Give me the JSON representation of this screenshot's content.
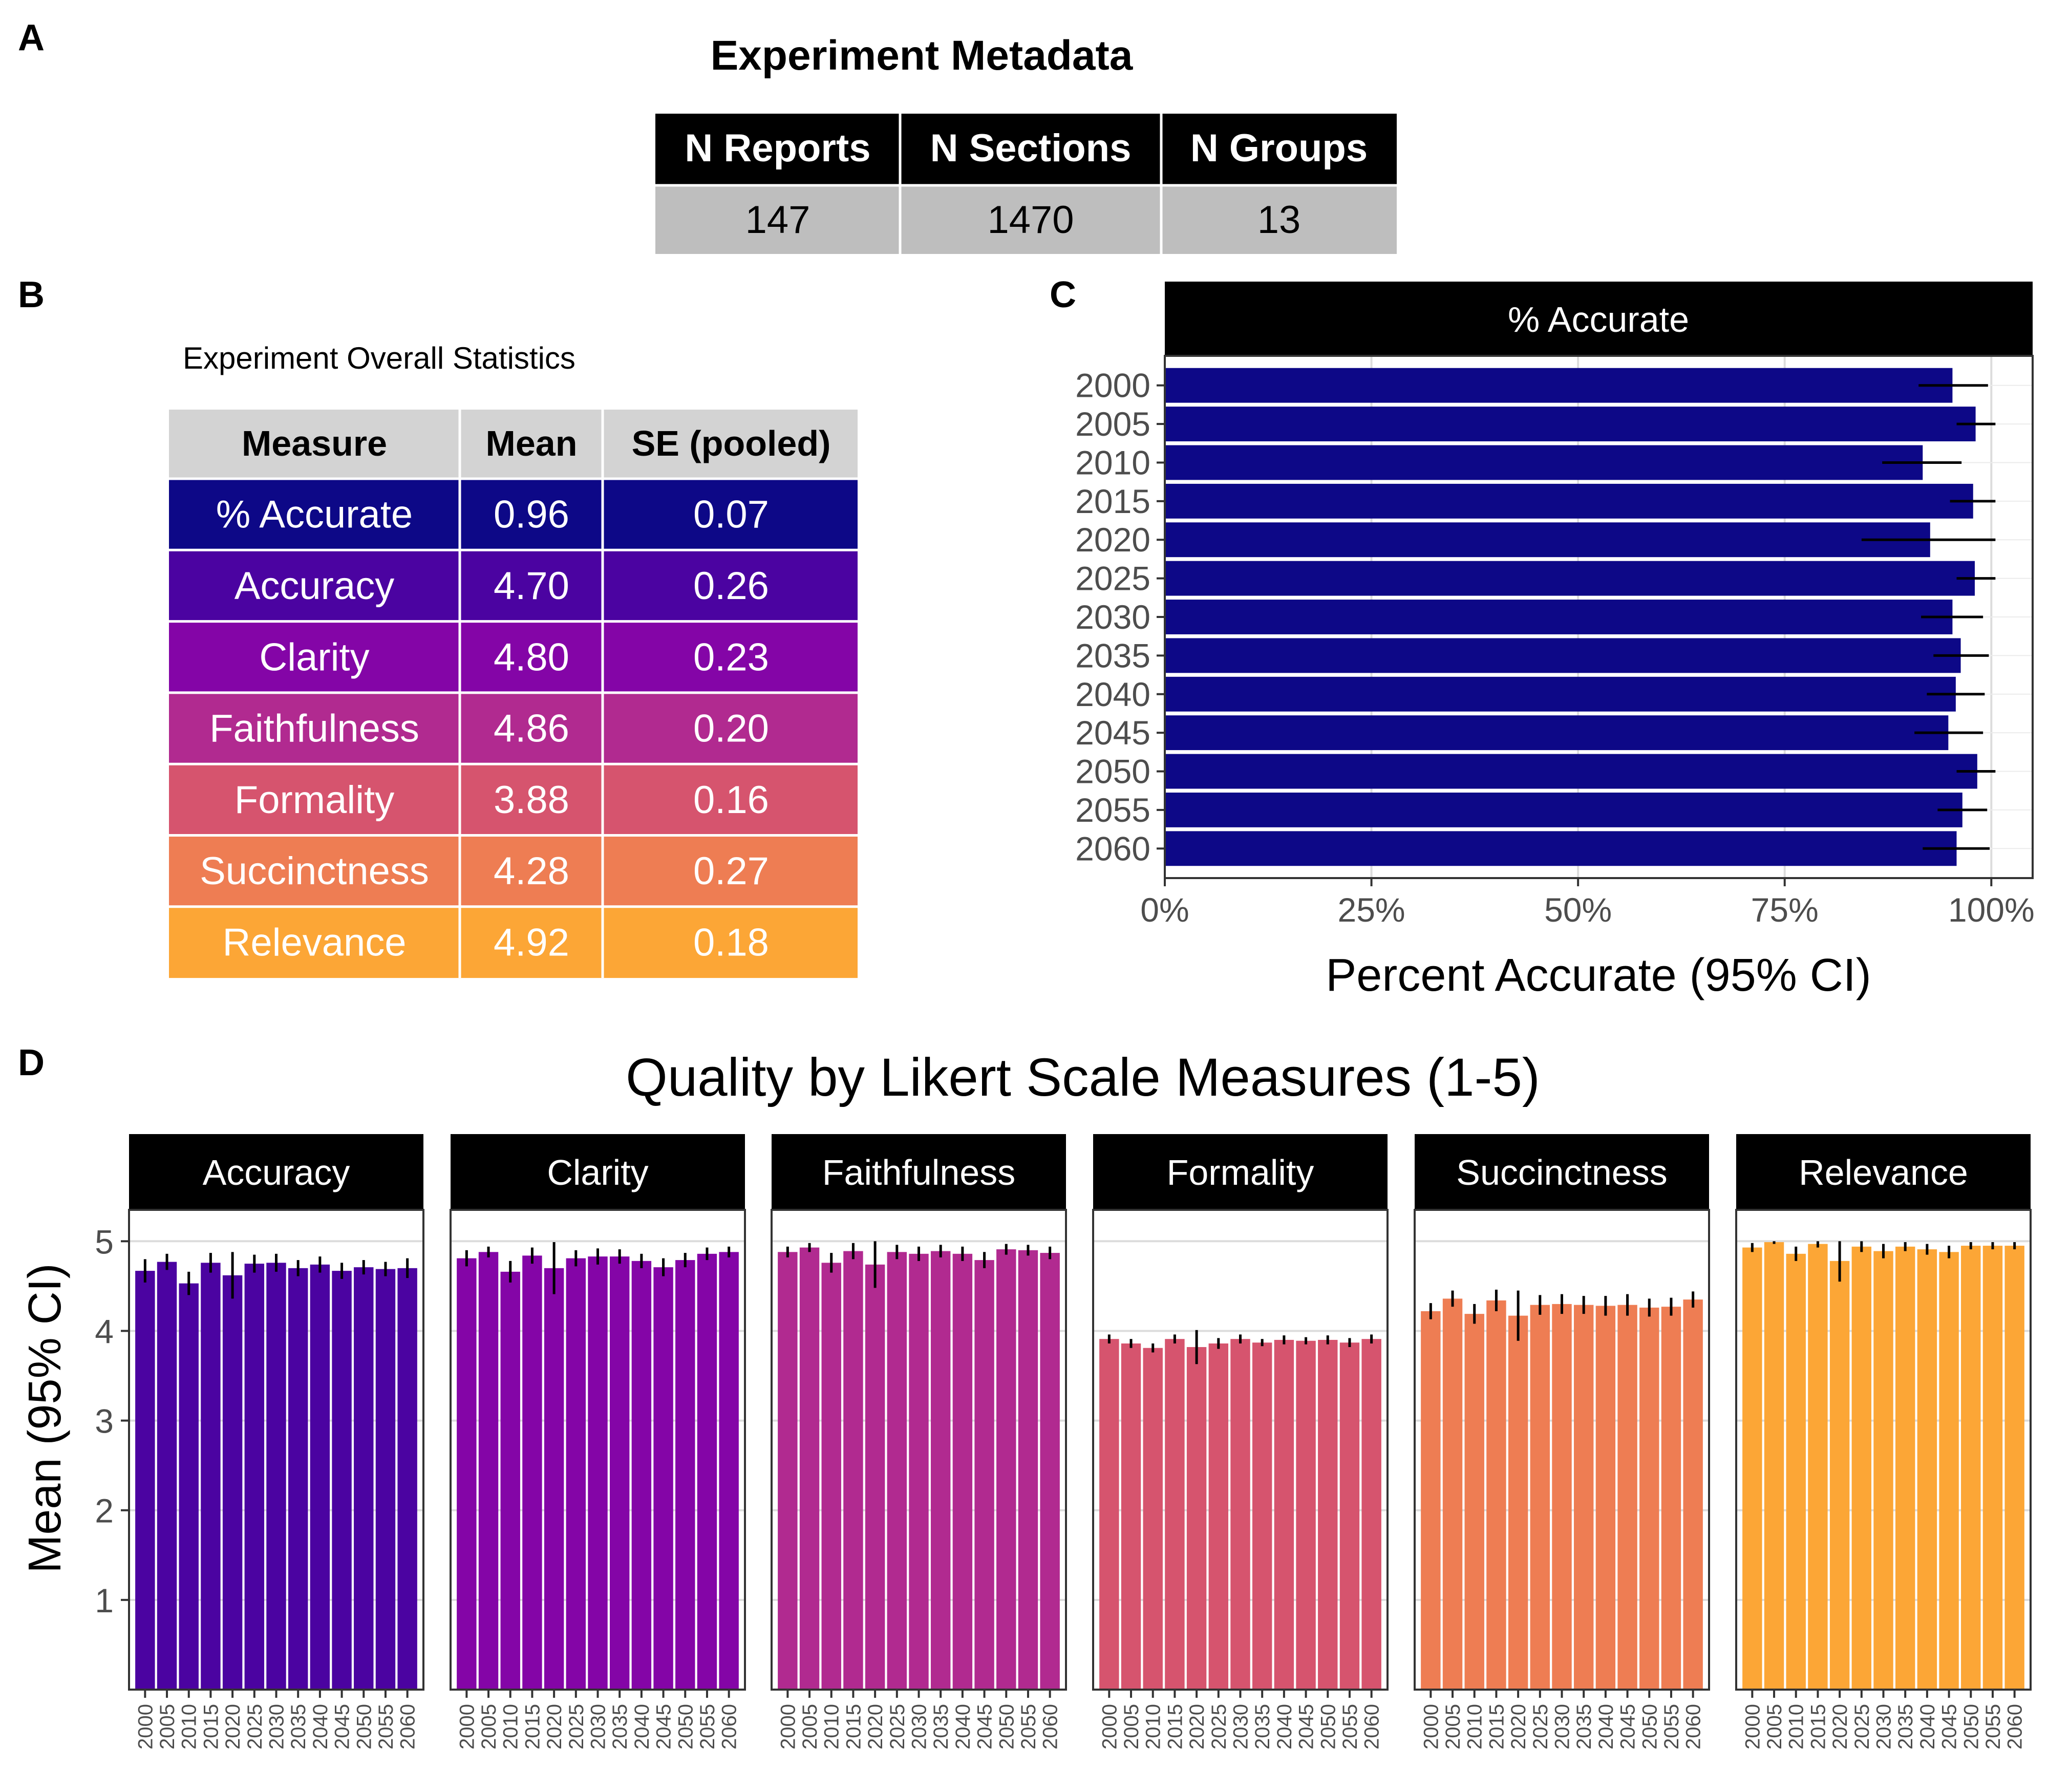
{
  "panel_labels": {
    "a": "A",
    "b": "B",
    "c": "C",
    "d": "D"
  },
  "metadata_table": {
    "title": "Experiment Metadata",
    "headers": [
      "N Reports",
      "N Sections",
      "N Groups"
    ],
    "values": [
      "147",
      "1470",
      "13"
    ]
  },
  "stats_table": {
    "title": "Experiment Overall Statistics",
    "headers": [
      "Measure",
      "Mean",
      "SE (pooled)"
    ],
    "rows": [
      {
        "measure": "% Accurate",
        "mean": "0.96",
        "se": "0.07",
        "color": "#0d0887"
      },
      {
        "measure": "Accuracy",
        "mean": "4.70",
        "se": "0.26",
        "color": "#4b03a1"
      },
      {
        "measure": "Clarity",
        "mean": "4.80",
        "se": "0.23",
        "color": "#8405a7"
      },
      {
        "measure": "Faithfulness",
        "mean": "4.86",
        "se": "0.20",
        "color": "#b12a90"
      },
      {
        "measure": "Formality",
        "mean": "3.88",
        "se": "0.16",
        "color": "#d6546e"
      },
      {
        "measure": "Succinctness",
        "mean": "4.28",
        "se": "0.27",
        "color": "#ee7d53"
      },
      {
        "measure": "Relevance",
        "mean": "4.92",
        "se": "0.18",
        "color": "#fca636"
      }
    ]
  },
  "chart_data": [
    {
      "type": "bar",
      "orientation": "horizontal",
      "facet_title": "% Accurate",
      "xlabel": "Percent Accurate (95% CI)",
      "xlim": [
        0,
        1.05
      ],
      "xticks": [
        0,
        0.25,
        0.5,
        0.75,
        1.0
      ],
      "xtick_labels": [
        "0%",
        "25%",
        "50%",
        "75%",
        "100%"
      ],
      "categories": [
        "2000",
        "2005",
        "2010",
        "2015",
        "2020",
        "2025",
        "2030",
        "2035",
        "2040",
        "2045",
        "2050",
        "2055",
        "2060"
      ],
      "values": [
        0.953,
        0.981,
        0.917,
        0.978,
        0.926,
        0.98,
        0.953,
        0.963,
        0.957,
        0.948,
        0.983,
        0.965,
        0.958
      ],
      "ci_low": [
        0.912,
        0.958,
        0.868,
        0.95,
        0.843,
        0.958,
        0.915,
        0.93,
        0.922,
        0.907,
        0.958,
        0.935,
        0.917
      ],
      "ci_high": [
        0.996,
        1.005,
        0.964,
        1.005,
        1.005,
        1.005,
        0.99,
        0.997,
        0.992,
        0.99,
        1.005,
        0.995,
        0.998
      ],
      "color": "#0d0887",
      "grid": true
    },
    {
      "type": "bar",
      "title": "Quality by Likert Scale Measures (1-5)",
      "ylabel": "Mean (95% CI)",
      "ylim": [
        0,
        5.35
      ],
      "yticks": [
        1,
        2,
        3,
        4,
        5
      ],
      "categories": [
        "2000",
        "2005",
        "2010",
        "2015",
        "2020",
        "2025",
        "2030",
        "2035",
        "2040",
        "2045",
        "2050",
        "2055",
        "2060"
      ],
      "series": [
        {
          "name": "Accuracy",
          "color": "#4b03a1",
          "values": [
            4.67,
            4.77,
            4.53,
            4.76,
            4.62,
            4.75,
            4.76,
            4.7,
            4.74,
            4.67,
            4.71,
            4.69,
            4.7
          ],
          "ci_low": [
            4.54,
            4.68,
            4.4,
            4.65,
            4.36,
            4.65,
            4.66,
            4.61,
            4.65,
            4.58,
            4.63,
            4.61,
            4.59
          ],
          "ci_high": [
            4.8,
            4.86,
            4.66,
            4.87,
            4.88,
            4.85,
            4.86,
            4.79,
            4.83,
            4.76,
            4.79,
            4.77,
            4.81
          ]
        },
        {
          "name": "Clarity",
          "color": "#8405a7",
          "values": [
            4.81,
            4.88,
            4.66,
            4.84,
            4.7,
            4.81,
            4.83,
            4.83,
            4.78,
            4.71,
            4.79,
            4.86,
            4.88
          ],
          "ci_low": [
            4.72,
            4.82,
            4.54,
            4.75,
            4.41,
            4.72,
            4.74,
            4.75,
            4.7,
            4.61,
            4.71,
            4.79,
            4.82
          ],
          "ci_high": [
            4.9,
            4.94,
            4.78,
            4.93,
            4.99,
            4.9,
            4.92,
            4.91,
            4.86,
            4.81,
            4.87,
            4.93,
            4.94
          ]
        },
        {
          "name": "Faithfulness",
          "color": "#b12a90",
          "values": [
            4.88,
            4.93,
            4.76,
            4.89,
            4.74,
            4.88,
            4.86,
            4.89,
            4.86,
            4.79,
            4.91,
            4.9,
            4.87
          ],
          "ci_low": [
            4.82,
            4.88,
            4.65,
            4.8,
            4.48,
            4.8,
            4.78,
            4.82,
            4.78,
            4.7,
            4.85,
            4.84,
            4.8
          ],
          "ci_high": [
            4.94,
            4.98,
            4.87,
            4.98,
            5.0,
            4.96,
            4.94,
            4.96,
            4.94,
            4.88,
            4.97,
            4.96,
            4.94
          ]
        },
        {
          "name": "Formality",
          "color": "#d6546e",
          "values": [
            3.91,
            3.86,
            3.81,
            3.91,
            3.82,
            3.86,
            3.91,
            3.87,
            3.9,
            3.89,
            3.9,
            3.87,
            3.91
          ],
          "ci_low": [
            3.86,
            3.81,
            3.76,
            3.86,
            3.63,
            3.8,
            3.86,
            3.83,
            3.85,
            3.85,
            3.85,
            3.82,
            3.86
          ],
          "ci_high": [
            3.96,
            3.91,
            3.86,
            3.96,
            4.01,
            3.92,
            3.96,
            3.91,
            3.95,
            3.93,
            3.95,
            3.92,
            3.96
          ]
        },
        {
          "name": "Succinctness",
          "color": "#ee7d53",
          "values": [
            4.22,
            4.36,
            4.19,
            4.34,
            4.17,
            4.29,
            4.3,
            4.29,
            4.28,
            4.29,
            4.26,
            4.27,
            4.35
          ],
          "ci_low": [
            4.13,
            4.27,
            4.08,
            4.22,
            3.89,
            4.18,
            4.19,
            4.19,
            4.17,
            4.17,
            4.16,
            4.17,
            4.26
          ],
          "ci_high": [
            4.31,
            4.45,
            4.3,
            4.46,
            4.45,
            4.4,
            4.41,
            4.39,
            4.39,
            4.41,
            4.36,
            4.37,
            4.44
          ]
        },
        {
          "name": "Relevance",
          "color": "#fca636",
          "values": [
            4.93,
            4.99,
            4.86,
            4.97,
            4.78,
            4.94,
            4.89,
            4.94,
            4.91,
            4.88,
            4.95,
            4.95,
            4.95
          ],
          "ci_low": [
            4.88,
            4.97,
            4.78,
            4.93,
            4.55,
            4.88,
            4.81,
            4.89,
            4.85,
            4.81,
            4.91,
            4.91,
            4.91
          ],
          "ci_high": [
            4.98,
            5.0,
            4.94,
            5.0,
            5.0,
            5.0,
            4.97,
            4.99,
            4.97,
            4.95,
            4.99,
            4.99,
            4.99
          ]
        }
      ],
      "grid": true
    }
  ]
}
